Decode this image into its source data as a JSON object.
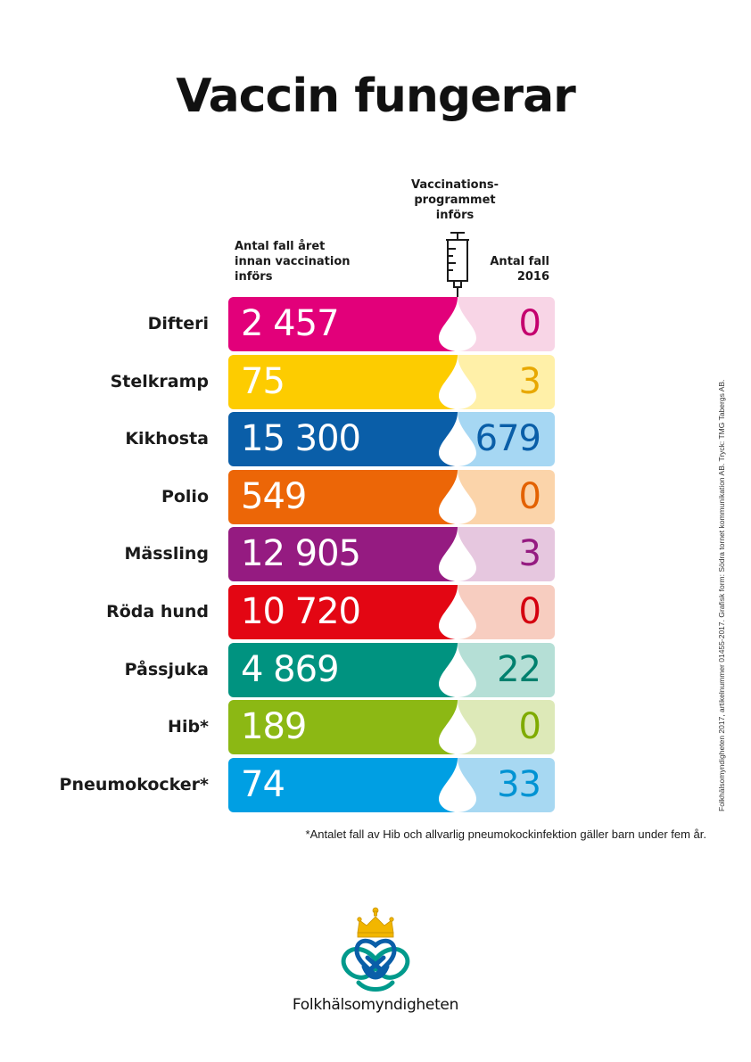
{
  "title": "Vaccin fungerar",
  "headers": {
    "before": "Antal fall året\ninnan vaccination\ninförs",
    "introduced": "Vaccinations-\nprogrammet\ninförs",
    "after": "Antal fall\n2016"
  },
  "rows": [
    {
      "label": "Difteri",
      "before": "2 457",
      "after": "0",
      "color": "#e2007a",
      "light": "#f8d5e6",
      "after_color": "#c4006e"
    },
    {
      "label": "Stelkramp",
      "before": "75",
      "after": "3",
      "color": "#fdcc00",
      "light": "#fff0a8",
      "after_color": "#e8a800"
    },
    {
      "label": "Kikhosta",
      "before": "15 300",
      "after": "679",
      "color": "#0a5ea8",
      "light": "#a6d7f3",
      "after_color": "#0a5ea8"
    },
    {
      "label": "Polio",
      "before": "549",
      "after": "0",
      "color": "#ec6607",
      "light": "#fbd4aa",
      "after_color": "#e36100"
    },
    {
      "label": "Mässling",
      "before": "12 905",
      "after": "3",
      "color": "#951b81",
      "light": "#e6c7df",
      "after_color": "#951b81"
    },
    {
      "label": "Röda hund",
      "before": "10 720",
      "after": "0",
      "color": "#e30613",
      "light": "#f7cdc0",
      "after_color": "#d4000f"
    },
    {
      "label": "Påssjuka",
      "before": "4 869",
      "after": "22",
      "color": "#009380",
      "light": "#b5dfd6",
      "after_color": "#00806e"
    },
    {
      "label": "Hib*",
      "before": "189",
      "after": "0",
      "color": "#8cb814",
      "light": "#dde9b8",
      "after_color": "#7fab00"
    },
    {
      "label": "Pneumokocker*",
      "before": "74",
      "after": "33",
      "color": "#009fe3",
      "light": "#a7d8f2",
      "after_color": "#0093d3"
    }
  ],
  "footnote": "*Antalet fall av Hib och allvarlig pneumokockinfektion gäller barn under fem år.",
  "side_note": "Folkhälsomyndigheten 2017, artikelnummer 01455-2017. Grafisk form: Södra tornet kommunikation AB. Tryck: TMG Tabergs AB.",
  "logo": {
    "text": "Folkhälsomyndigheten",
    "icon": "crown-heart-knot-logo"
  },
  "icons": {
    "syringe": "syringe-icon",
    "drop": "drop-icon"
  }
}
